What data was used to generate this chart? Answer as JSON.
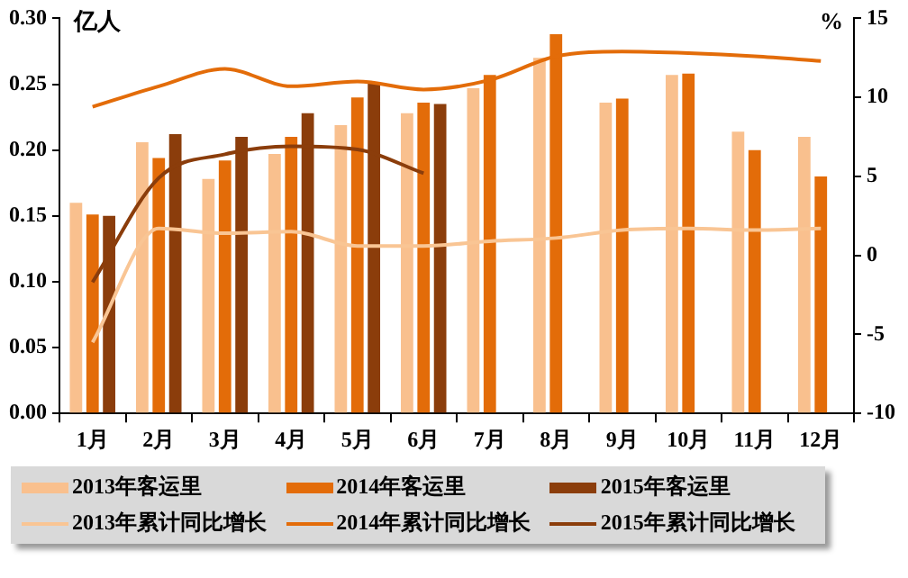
{
  "chart_data": {
    "type": "bar",
    "ylabel": "亿人",
    "y2label": "%",
    "categories": [
      "1月",
      "2月",
      "3月",
      "4月",
      "5月",
      "6月",
      "7月",
      "8月",
      "9月",
      "10月",
      "11月",
      "12月"
    ],
    "series": [
      {
        "name": "2013年客运里",
        "color": "#f9c08e",
        "values": [
          0.16,
          0.206,
          0.178,
          0.197,
          0.219,
          0.228,
          0.247,
          0.27,
          0.236,
          0.257,
          0.214,
          0.21
        ]
      },
      {
        "name": "2014年客运里",
        "color": "#e36c09",
        "values": [
          0.151,
          0.194,
          0.192,
          0.21,
          0.24,
          0.236,
          0.257,
          0.288,
          0.239,
          0.258,
          0.2,
          0.18
        ]
      },
      {
        "name": "2015年客运里",
        "color": "#8b3d0b",
        "values": [
          0.15,
          0.212,
          0.21,
          0.228,
          0.251,
          0.235,
          null,
          null,
          null,
          null,
          null,
          null
        ]
      },
      {
        "name": "2013年累计同比增长",
        "type": "line",
        "axis": "y2",
        "color": "#f9c594",
        "values": [
          -5.5,
          1.7,
          1.4,
          1.5,
          0.6,
          0.6,
          0.9,
          1.1,
          1.6,
          1.7,
          1.6,
          1.7
        ]
      },
      {
        "name": "2014年累计同比增长",
        "type": "line",
        "axis": "y2",
        "color": "#e36c09",
        "values": [
          9.4,
          10.7,
          11.8,
          10.7,
          11.0,
          10.5,
          11.1,
          12.6,
          12.9,
          12.8,
          12.6,
          12.3
        ]
      },
      {
        "name": "2015年累计同比增长",
        "type": "line",
        "axis": "y2",
        "color": "#8b3d0b",
        "values": [
          -1.7,
          4.9,
          6.4,
          6.9,
          6.7,
          5.2,
          null,
          null,
          null,
          null,
          null,
          null
        ]
      }
    ],
    "ylim": [
      0,
      0.3
    ],
    "yticks": [
      {
        "value": 0,
        "label": "0.00"
      },
      0.05,
      {
        "value": 0.1,
        "label": "0.10"
      },
      0.15,
      {
        "value": 0.2,
        "label": "0.20"
      },
      0.25,
      {
        "value": 0.3,
        "label": "0.30"
      }
    ],
    "y2lim": [
      -10,
      15
    ],
    "y2ticks": [
      -10,
      -5,
      0,
      5,
      10,
      15
    ],
    "grid": false,
    "legend": "bottom",
    "marker": "none",
    "line_style": "solid"
  }
}
